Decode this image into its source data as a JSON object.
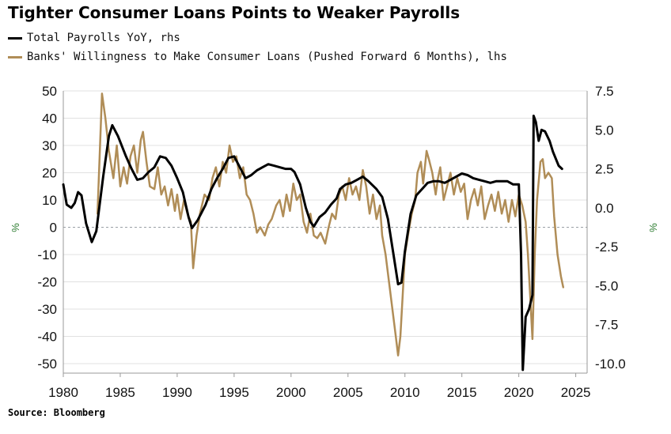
{
  "title": "Tighter Consumer Loans Points to Weaker Payrolls",
  "legend": [
    {
      "label": "Total Payrolls YoY, rhs",
      "color": "#000000"
    },
    {
      "label": "Banks' Willingness to Make Consumer Loans (Pushed Forward 6 Months), lhs",
      "color": "#b08d57"
    }
  ],
  "source": "Source: Bloomberg",
  "chart_data": {
    "type": "line",
    "grid": true,
    "legend_position": "top-left",
    "x_ticks": [
      "1980",
      "1985",
      "1990",
      "1995",
      "2000",
      "2005",
      "2010",
      "2015",
      "2020",
      "2025"
    ],
    "xlim": [
      1980,
      2026
    ],
    "left_axis": {
      "unit": "%",
      "ylim": [
        -50,
        50
      ],
      "ticks": [
        "50",
        "40",
        "30",
        "20",
        "10",
        "0",
        "-10",
        "-20",
        "-30",
        "-40",
        "-50"
      ]
    },
    "right_axis": {
      "unit": "%",
      "ylim": [
        -10,
        7.5
      ],
      "ticks": [
        "7.5",
        "5.0",
        "2.5",
        "0.0",
        "-2.5",
        "-5.0",
        "-7.5",
        "-10.0"
      ]
    },
    "series": [
      {
        "name": "Total Payrolls YoY, rhs",
        "axis": "right",
        "color": "#000000",
        "points": [
          [
            1980.0,
            1.5
          ],
          [
            1980.3,
            0.2
          ],
          [
            1980.7,
            0.0
          ],
          [
            1981.0,
            0.3
          ],
          [
            1981.3,
            1.0
          ],
          [
            1981.6,
            0.8
          ],
          [
            1982.0,
            -1.0
          ],
          [
            1982.5,
            -2.2
          ],
          [
            1982.9,
            -1.5
          ],
          [
            1983.5,
            2.0
          ],
          [
            1984.0,
            4.6
          ],
          [
            1984.3,
            5.3
          ],
          [
            1984.8,
            4.6
          ],
          [
            1985.5,
            3.3
          ],
          [
            1986.0,
            2.5
          ],
          [
            1986.5,
            1.8
          ],
          [
            1987.0,
            1.9
          ],
          [
            1987.5,
            2.3
          ],
          [
            1988.0,
            2.6
          ],
          [
            1988.5,
            3.3
          ],
          [
            1989.0,
            3.2
          ],
          [
            1989.5,
            2.7
          ],
          [
            1990.0,
            1.9
          ],
          [
            1990.5,
            1.0
          ],
          [
            1991.0,
            -0.6
          ],
          [
            1991.3,
            -1.3
          ],
          [
            1991.8,
            -0.8
          ],
          [
            1992.5,
            0.2
          ],
          [
            1993.0,
            1.2
          ],
          [
            1993.5,
            1.9
          ],
          [
            1994.0,
            2.5
          ],
          [
            1994.5,
            3.2
          ],
          [
            1995.0,
            3.3
          ],
          [
            1995.5,
            2.6
          ],
          [
            1996.0,
            1.9
          ],
          [
            1996.5,
            2.1
          ],
          [
            1997.0,
            2.4
          ],
          [
            1997.5,
            2.6
          ],
          [
            1998.0,
            2.8
          ],
          [
            1998.5,
            2.7
          ],
          [
            1999.0,
            2.6
          ],
          [
            1999.5,
            2.5
          ],
          [
            2000.0,
            2.5
          ],
          [
            2000.3,
            2.3
          ],
          [
            2000.8,
            1.5
          ],
          [
            2001.3,
            0.0
          ],
          [
            2001.7,
            -0.9
          ],
          [
            2002.0,
            -1.2
          ],
          [
            2002.5,
            -0.6
          ],
          [
            2003.0,
            -0.3
          ],
          [
            2003.5,
            0.2
          ],
          [
            2004.0,
            0.6
          ],
          [
            2004.3,
            1.2
          ],
          [
            2004.8,
            1.5
          ],
          [
            2005.3,
            1.6
          ],
          [
            2005.8,
            1.8
          ],
          [
            2006.3,
            2.0
          ],
          [
            2006.8,
            1.7
          ],
          [
            2007.5,
            1.2
          ],
          [
            2008.0,
            0.7
          ],
          [
            2008.5,
            -0.7
          ],
          [
            2009.0,
            -3.0
          ],
          [
            2009.4,
            -4.9
          ],
          [
            2009.7,
            -4.8
          ],
          [
            2010.0,
            -2.8
          ],
          [
            2010.5,
            -0.4
          ],
          [
            2011.0,
            0.8
          ],
          [
            2011.5,
            1.2
          ],
          [
            2012.0,
            1.6
          ],
          [
            2012.5,
            1.7
          ],
          [
            2013.0,
            1.7
          ],
          [
            2013.5,
            1.6
          ],
          [
            2014.0,
            1.8
          ],
          [
            2014.5,
            2.0
          ],
          [
            2015.0,
            2.2
          ],
          [
            2015.5,
            2.1
          ],
          [
            2016.0,
            1.9
          ],
          [
            2016.5,
            1.8
          ],
          [
            2017.0,
            1.7
          ],
          [
            2017.5,
            1.6
          ],
          [
            2018.0,
            1.7
          ],
          [
            2018.5,
            1.7
          ],
          [
            2019.0,
            1.7
          ],
          [
            2019.5,
            1.5
          ],
          [
            2020.0,
            1.5
          ],
          [
            2020.2,
            -3.0
          ],
          [
            2020.35,
            -10.4
          ],
          [
            2020.6,
            -7.0
          ],
          [
            2020.9,
            -6.5
          ],
          [
            2021.2,
            -5.6
          ],
          [
            2021.3,
            5.9
          ],
          [
            2021.5,
            5.5
          ],
          [
            2021.75,
            4.3
          ],
          [
            2022.0,
            5.0
          ],
          [
            2022.3,
            4.9
          ],
          [
            2022.7,
            4.3
          ],
          [
            2023.0,
            3.6
          ],
          [
            2023.5,
            2.7
          ],
          [
            2023.8,
            2.5
          ]
        ]
      },
      {
        "name": "Banks' Willingness to Make Consumer Loans (Pushed Forward 6 Months), lhs",
        "axis": "left",
        "color": "#b08d57",
        "points": [
          [
            1983.0,
            5
          ],
          [
            1983.4,
            49
          ],
          [
            1983.7,
            40
          ],
          [
            1984.0,
            28
          ],
          [
            1984.4,
            18
          ],
          [
            1984.7,
            30
          ],
          [
            1985.0,
            15
          ],
          [
            1985.3,
            22
          ],
          [
            1985.6,
            16
          ],
          [
            1985.9,
            26
          ],
          [
            1986.2,
            30
          ],
          [
            1986.5,
            20
          ],
          [
            1986.8,
            32
          ],
          [
            1987.0,
            35
          ],
          [
            1987.3,
            24
          ],
          [
            1987.6,
            15
          ],
          [
            1988.0,
            14
          ],
          [
            1988.3,
            22
          ],
          [
            1988.6,
            12
          ],
          [
            1988.9,
            15
          ],
          [
            1989.2,
            8
          ],
          [
            1989.5,
            14
          ],
          [
            1989.8,
            6
          ],
          [
            1990.0,
            12
          ],
          [
            1990.3,
            3
          ],
          [
            1990.6,
            10
          ],
          [
            1990.9,
            5
          ],
          [
            1991.2,
            2
          ],
          [
            1991.4,
            -15
          ],
          [
            1991.7,
            -3
          ],
          [
            1992.0,
            5
          ],
          [
            1992.4,
            12
          ],
          [
            1992.8,
            10
          ],
          [
            1993.1,
            18
          ],
          [
            1993.4,
            22
          ],
          [
            1993.7,
            15
          ],
          [
            1994.0,
            24
          ],
          [
            1994.3,
            20
          ],
          [
            1994.6,
            30
          ],
          [
            1994.9,
            24
          ],
          [
            1995.2,
            26
          ],
          [
            1995.5,
            18
          ],
          [
            1995.8,
            22
          ],
          [
            1996.1,
            12
          ],
          [
            1996.4,
            10
          ],
          [
            1996.7,
            5
          ],
          [
            1997.0,
            -2
          ],
          [
            1997.3,
            0
          ],
          [
            1997.7,
            -3
          ],
          [
            1998.0,
            1
          ],
          [
            1998.3,
            3
          ],
          [
            1998.7,
            8
          ],
          [
            1999.0,
            10
          ],
          [
            1999.3,
            4
          ],
          [
            1999.6,
            12
          ],
          [
            1999.9,
            6
          ],
          [
            2000.2,
            16
          ],
          [
            2000.5,
            10
          ],
          [
            2000.8,
            12
          ],
          [
            2001.1,
            2
          ],
          [
            2001.4,
            -2
          ],
          [
            2001.7,
            5
          ],
          [
            2002.0,
            -3
          ],
          [
            2002.3,
            -4
          ],
          [
            2002.6,
            -2
          ],
          [
            2003.0,
            -6
          ],
          [
            2003.3,
            0
          ],
          [
            2003.6,
            5
          ],
          [
            2003.9,
            3
          ],
          [
            2004.2,
            12
          ],
          [
            2004.5,
            15
          ],
          [
            2004.8,
            10
          ],
          [
            2005.1,
            18
          ],
          [
            2005.4,
            12
          ],
          [
            2005.7,
            15
          ],
          [
            2006.0,
            10
          ],
          [
            2006.3,
            21
          ],
          [
            2006.6,
            15
          ],
          [
            2006.9,
            5
          ],
          [
            2007.2,
            12
          ],
          [
            2007.5,
            3
          ],
          [
            2007.8,
            8
          ],
          [
            2008.0,
            -3
          ],
          [
            2008.3,
            -10
          ],
          [
            2008.6,
            -20
          ],
          [
            2008.9,
            -30
          ],
          [
            2009.2,
            -40
          ],
          [
            2009.4,
            -47
          ],
          [
            2009.6,
            -40
          ],
          [
            2009.8,
            -25
          ],
          [
            2010.0,
            -10
          ],
          [
            2010.3,
            -2
          ],
          [
            2010.6,
            5
          ],
          [
            2010.9,
            10
          ],
          [
            2011.1,
            20
          ],
          [
            2011.4,
            24
          ],
          [
            2011.6,
            16
          ],
          [
            2011.9,
            28
          ],
          [
            2012.1,
            25
          ],
          [
            2012.4,
            20
          ],
          [
            2012.7,
            12
          ],
          [
            2012.9,
            18
          ],
          [
            2013.1,
            22
          ],
          [
            2013.4,
            10
          ],
          [
            2013.7,
            15
          ],
          [
            2014.0,
            20
          ],
          [
            2014.3,
            12
          ],
          [
            2014.6,
            18
          ],
          [
            2014.9,
            13
          ],
          [
            2015.2,
            16
          ],
          [
            2015.5,
            3
          ],
          [
            2015.8,
            10
          ],
          [
            2016.1,
            14
          ],
          [
            2016.4,
            8
          ],
          [
            2016.7,
            15
          ],
          [
            2017.0,
            3
          ],
          [
            2017.3,
            8
          ],
          [
            2017.6,
            12
          ],
          [
            2017.9,
            6
          ],
          [
            2018.2,
            13
          ],
          [
            2018.5,
            5
          ],
          [
            2018.8,
            10
          ],
          [
            2019.1,
            2
          ],
          [
            2019.4,
            10
          ],
          [
            2019.7,
            4
          ],
          [
            2020.0,
            12
          ],
          [
            2020.3,
            8
          ],
          [
            2020.6,
            2
          ],
          [
            2020.8,
            -10
          ],
          [
            2021.0,
            -25
          ],
          [
            2021.2,
            -41
          ],
          [
            2021.4,
            -10
          ],
          [
            2021.6,
            10
          ],
          [
            2021.9,
            24
          ],
          [
            2022.1,
            25
          ],
          [
            2022.3,
            18
          ],
          [
            2022.6,
            20
          ],
          [
            2022.9,
            18
          ],
          [
            2023.1,
            4
          ],
          [
            2023.4,
            -10
          ],
          [
            2023.7,
            -18
          ],
          [
            2023.9,
            -22
          ]
        ]
      }
    ]
  }
}
